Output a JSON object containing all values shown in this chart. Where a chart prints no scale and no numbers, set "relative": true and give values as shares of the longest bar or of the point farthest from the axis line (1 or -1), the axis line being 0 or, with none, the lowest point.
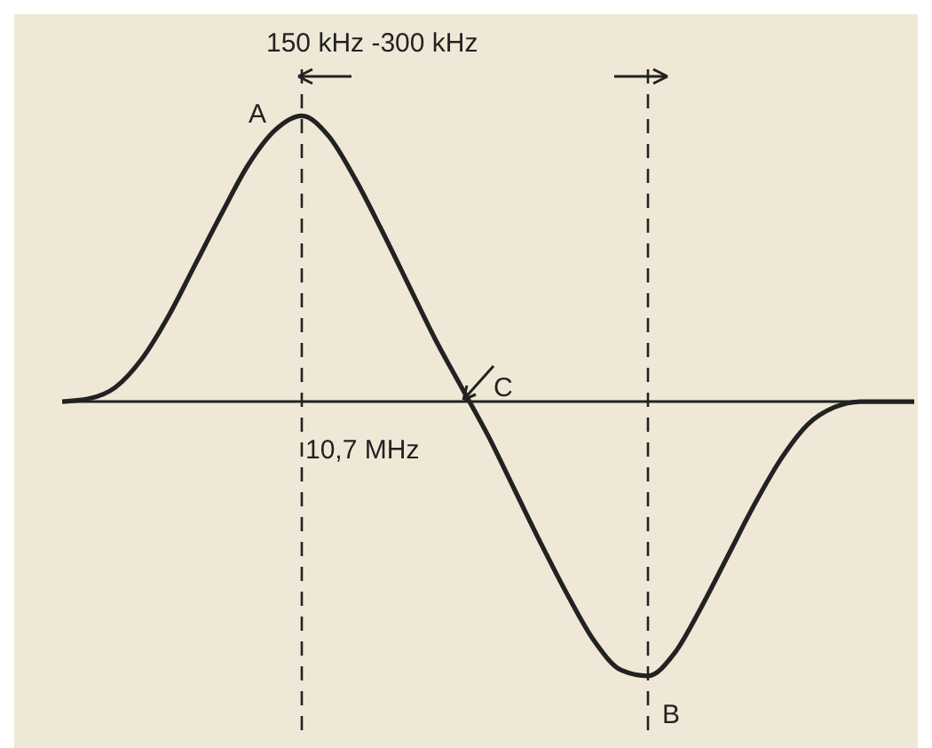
{
  "chart_data": {
    "type": "line",
    "relative": true,
    "categories": [
      null,
      null,
      null,
      null,
      null,
      null,
      null,
      null,
      null,
      null,
      null,
      null,
      null,
      null,
      null,
      null,
      null,
      null,
      null,
      null,
      null,
      null,
      null,
      null,
      null,
      null,
      null,
      null,
      null,
      null,
      null,
      null,
      null
    ],
    "series": [
      {
        "color": "#222222",
        "values": [
          0,
          0.01,
          0.05,
          0.15,
          0.3,
          0.48,
          0.66,
          0.83,
          0.95,
          1,
          0.93,
          0.78,
          0.6,
          0.41,
          0.22,
          0.05,
          -0.12,
          -0.31,
          -0.5,
          -0.68,
          -0.84,
          -0.94,
          -0.96,
          -0.88,
          -0.72,
          -0.54,
          -0.36,
          -0.2,
          -0.08,
          -0.02,
          0,
          0,
          0
        ]
      }
    ],
    "annotations": [
      "150 kHz -300 kHz",
      "A",
      "C",
      "10,7 MHz",
      "B"
    ],
    "marker": "none",
    "line_style": "solid"
  }
}
